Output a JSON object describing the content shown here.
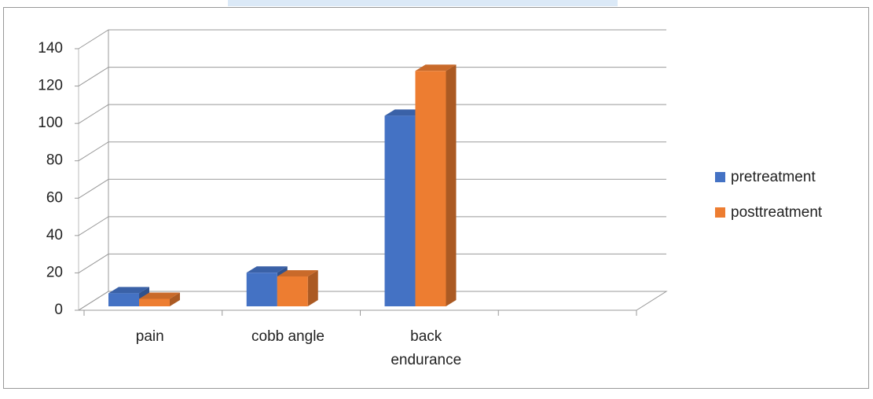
{
  "chart_data": {
    "type": "bar3d",
    "categories": [
      "pain",
      "cobb angle",
      "back endurance",
      null
    ],
    "series": [
      {
        "name": "pretreatment",
        "color": "#4472c4",
        "values": [
          7,
          18,
          102,
          null
        ]
      },
      {
        "name": "posttreatment",
        "color": "#ed7d31",
        "values": [
          4,
          16,
          126,
          null
        ]
      }
    ],
    "ylim": [
      0,
      140
    ],
    "yticks": [
      0,
      20,
      40,
      60,
      80,
      100,
      120,
      140
    ],
    "grid": true,
    "legend": "right"
  }
}
